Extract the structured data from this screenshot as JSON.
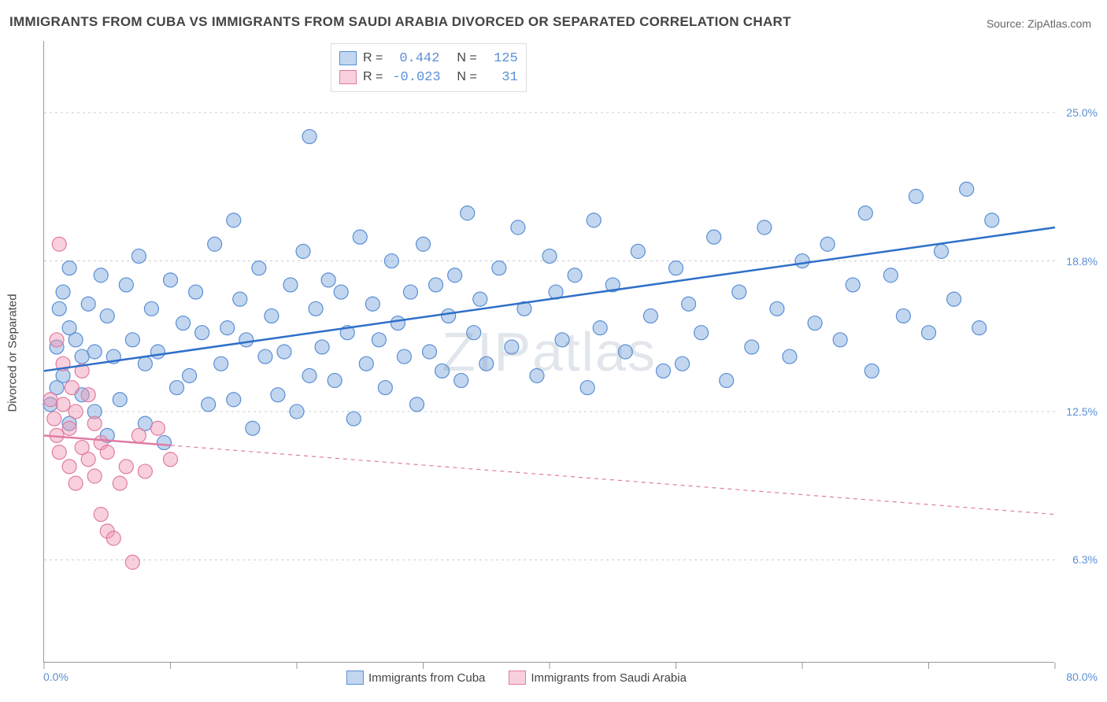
{
  "title": "IMMIGRANTS FROM CUBA VS IMMIGRANTS FROM SAUDI ARABIA DIVORCED OR SEPARATED CORRELATION CHART",
  "source": "Source: ZipAtlas.com",
  "watermark": "ZIPatlas",
  "yaxis_label": "Divorced or Separated",
  "chart": {
    "type": "scatter",
    "background_color": "#ffffff",
    "grid_color": "#cccccc",
    "axis_color": "#999999",
    "xlim": [
      0,
      80
    ],
    "ylim": [
      2,
      28
    ],
    "ytick_labels": [
      "6.3%",
      "12.5%",
      "18.8%",
      "25.0%"
    ],
    "ytick_values": [
      6.3,
      12.5,
      18.8,
      25.0
    ],
    "xtick_marks": [
      0,
      10,
      20,
      30,
      40,
      50,
      60,
      70,
      80
    ],
    "xtick_left_label": "0.0%",
    "xtick_right_label": "80.0%",
    "marker_radius": 9,
    "marker_opacity": 0.45,
    "line_width": 2.5
  },
  "series": [
    {
      "name": "Immigrants from Cuba",
      "color_fill": "rgba(120,165,220,0.45)",
      "color_stroke": "#5b8fd6",
      "line_color": "#2d6fc9",
      "line_dash": "none",
      "R": "0.442",
      "N": "125",
      "trend": {
        "x1": 0,
        "y1": 14.2,
        "x2": 80,
        "y2": 20.2
      },
      "points": [
        [
          0.5,
          12.8
        ],
        [
          1,
          15.2
        ],
        [
          1,
          13.5
        ],
        [
          1.2,
          16.8
        ],
        [
          1.5,
          14
        ],
        [
          1.5,
          17.5
        ],
        [
          2,
          12
        ],
        [
          2,
          16
        ],
        [
          2,
          18.5
        ],
        [
          2.5,
          15.5
        ],
        [
          3,
          13.2
        ],
        [
          3,
          14.8
        ],
        [
          3.5,
          17
        ],
        [
          4,
          12.5
        ],
        [
          4,
          15
        ],
        [
          4.5,
          18.2
        ],
        [
          5,
          11.5
        ],
        [
          5,
          16.5
        ],
        [
          5.5,
          14.8
        ],
        [
          6,
          13
        ],
        [
          6.5,
          17.8
        ],
        [
          7,
          15.5
        ],
        [
          7.5,
          19
        ],
        [
          8,
          12
        ],
        [
          8,
          14.5
        ],
        [
          8.5,
          16.8
        ],
        [
          9,
          15
        ],
        [
          9.5,
          11.2
        ],
        [
          10,
          18
        ],
        [
          10.5,
          13.5
        ],
        [
          11,
          16.2
        ],
        [
          11.5,
          14
        ],
        [
          12,
          17.5
        ],
        [
          12.5,
          15.8
        ],
        [
          13,
          12.8
        ],
        [
          13.5,
          19.5
        ],
        [
          14,
          14.5
        ],
        [
          14.5,
          16
        ],
        [
          15,
          13
        ],
        [
          15,
          20.5
        ],
        [
          15.5,
          17.2
        ],
        [
          16,
          15.5
        ],
        [
          16.5,
          11.8
        ],
        [
          17,
          18.5
        ],
        [
          17.5,
          14.8
        ],
        [
          18,
          16.5
        ],
        [
          18.5,
          13.2
        ],
        [
          19,
          15
        ],
        [
          19.5,
          17.8
        ],
        [
          20,
          12.5
        ],
        [
          20.5,
          19.2
        ],
        [
          21,
          24
        ],
        [
          21,
          14
        ],
        [
          21.5,
          16.8
        ],
        [
          22,
          15.2
        ],
        [
          22.5,
          18
        ],
        [
          23,
          13.8
        ],
        [
          23.5,
          17.5
        ],
        [
          24,
          15.8
        ],
        [
          24.5,
          12.2
        ],
        [
          25,
          19.8
        ],
        [
          25.5,
          14.5
        ],
        [
          26,
          17
        ],
        [
          26.5,
          15.5
        ],
        [
          27,
          13.5
        ],
        [
          27.5,
          18.8
        ],
        [
          28,
          16.2
        ],
        [
          28.5,
          14.8
        ],
        [
          29,
          17.5
        ],
        [
          29.5,
          12.8
        ],
        [
          30,
          19.5
        ],
        [
          30.5,
          15
        ],
        [
          31,
          17.8
        ],
        [
          31.5,
          14.2
        ],
        [
          32,
          16.5
        ],
        [
          32.5,
          18.2
        ],
        [
          33,
          13.8
        ],
        [
          33.5,
          20.8
        ],
        [
          34,
          15.8
        ],
        [
          34.5,
          17.2
        ],
        [
          35,
          14.5
        ],
        [
          36,
          18.5
        ],
        [
          37,
          15.2
        ],
        [
          37.5,
          20.2
        ],
        [
          38,
          16.8
        ],
        [
          39,
          14
        ],
        [
          40,
          19
        ],
        [
          40.5,
          17.5
        ],
        [
          41,
          15.5
        ],
        [
          42,
          18.2
        ],
        [
          43,
          13.5
        ],
        [
          43.5,
          20.5
        ],
        [
          44,
          16
        ],
        [
          45,
          17.8
        ],
        [
          46,
          15
        ],
        [
          47,
          19.2
        ],
        [
          48,
          16.5
        ],
        [
          49,
          14.2
        ],
        [
          50,
          18.5
        ],
        [
          50.5,
          14.5
        ],
        [
          51,
          17
        ],
        [
          52,
          15.8
        ],
        [
          53,
          19.8
        ],
        [
          54,
          13.8
        ],
        [
          55,
          17.5
        ],
        [
          56,
          15.2
        ],
        [
          57,
          20.2
        ],
        [
          58,
          16.8
        ],
        [
          59,
          14.8
        ],
        [
          60,
          18.8
        ],
        [
          61,
          16.2
        ],
        [
          62,
          19.5
        ],
        [
          63,
          15.5
        ],
        [
          64,
          17.8
        ],
        [
          65,
          20.8
        ],
        [
          65.5,
          14.2
        ],
        [
          67,
          18.2
        ],
        [
          68,
          16.5
        ],
        [
          69,
          21.5
        ],
        [
          70,
          15.8
        ],
        [
          71,
          19.2
        ],
        [
          72,
          17.2
        ],
        [
          73,
          21.8
        ],
        [
          74,
          16
        ],
        [
          75,
          20.5
        ]
      ]
    },
    {
      "name": "Immigrants from Saudi Arabia",
      "color_fill": "rgba(240,150,180,0.45)",
      "color_stroke": "#e07ba3",
      "line_color": "#e07ba3",
      "line_dash": "5,5",
      "R": "-0.023",
      "N": "31",
      "trend": {
        "x1": 0,
        "y1": 11.5,
        "x2": 80,
        "y2": 8.2
      },
      "points": [
        [
          0.5,
          13
        ],
        [
          0.8,
          12.2
        ],
        [
          1,
          11.5
        ],
        [
          1,
          15.5
        ],
        [
          1.2,
          10.8
        ],
        [
          1.2,
          19.5
        ],
        [
          1.5,
          12.8
        ],
        [
          1.5,
          14.5
        ],
        [
          2,
          10.2
        ],
        [
          2,
          11.8
        ],
        [
          2.2,
          13.5
        ],
        [
          2.5,
          9.5
        ],
        [
          2.5,
          12.5
        ],
        [
          3,
          11
        ],
        [
          3,
          14.2
        ],
        [
          3.5,
          10.5
        ],
        [
          3.5,
          13.2
        ],
        [
          4,
          9.8
        ],
        [
          4,
          12
        ],
        [
          4.5,
          11.2
        ],
        [
          4.5,
          8.2
        ],
        [
          5,
          10.8
        ],
        [
          5,
          7.5
        ],
        [
          5.5,
          7.2
        ],
        [
          6,
          9.5
        ],
        [
          6.5,
          10.2
        ],
        [
          7,
          6.2
        ],
        [
          7.5,
          11.5
        ],
        [
          8,
          10
        ],
        [
          9,
          11.8
        ],
        [
          10,
          10.5
        ]
      ]
    }
  ],
  "legend_bottom": [
    {
      "swatch": "blue",
      "label": "Immigrants from Cuba"
    },
    {
      "swatch": "pink",
      "label": "Immigrants from Saudi Arabia"
    }
  ]
}
